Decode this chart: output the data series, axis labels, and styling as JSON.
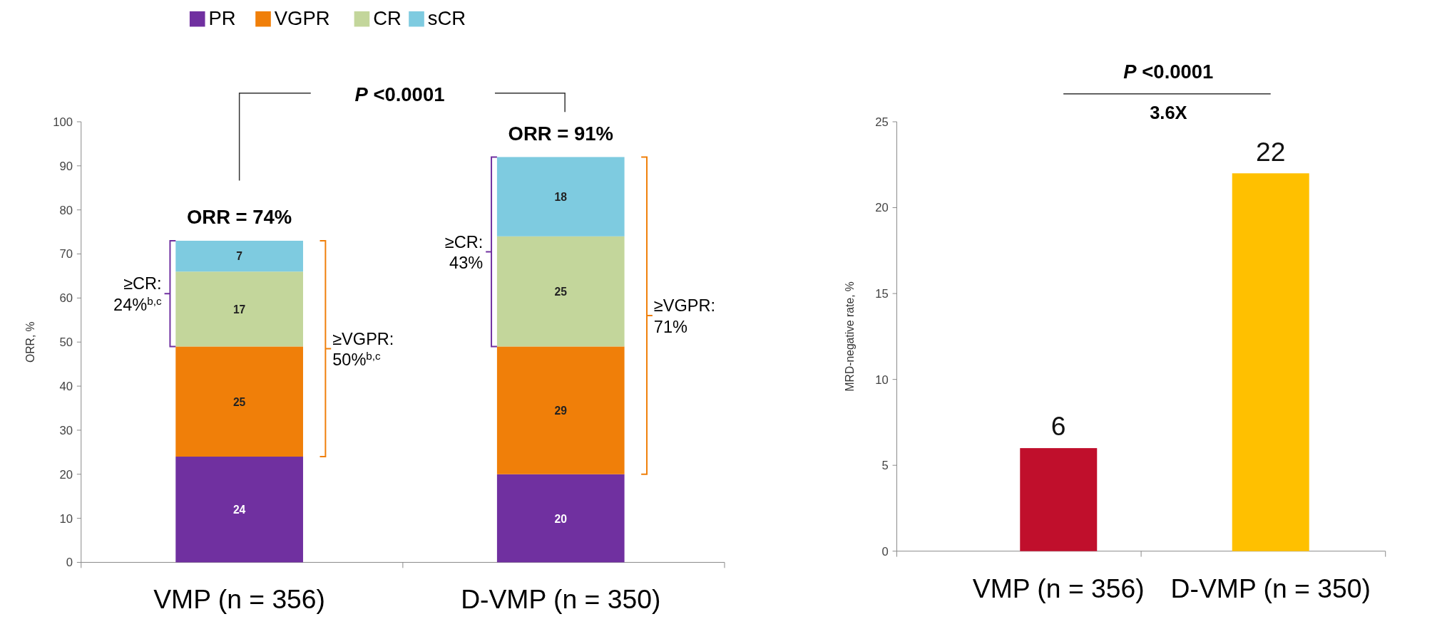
{
  "chart_data": [
    {
      "type": "bar",
      "stacked": true,
      "categories": [
        "VMP (n = 356)",
        "D-VMP (n = 350)"
      ],
      "ylabel": "ORR, %",
      "ylim": [
        0,
        100
      ],
      "yticks": [
        0,
        10,
        20,
        30,
        40,
        50,
        60,
        70,
        80,
        90,
        100
      ],
      "legend": "top",
      "data_labels": true,
      "series": [
        {
          "name": "PR",
          "color": "#7030a0",
          "values": [
            24,
            20
          ]
        },
        {
          "name": "VGPR",
          "color": "#f07f09",
          "values": [
            25,
            29
          ]
        },
        {
          "name": "CR",
          "color": "#c3d69b",
          "values": [
            17,
            25
          ]
        },
        {
          "name": "sCR",
          "color": "#7ecbe0",
          "values": [
            7,
            18
          ]
        }
      ],
      "annotations": [
        {
          "text": "ORR = 74%",
          "x": "VMP (n = 356)",
          "y": 73
        },
        "≥CR:\n24%$^{b,c}$",
        "≥VGPR:\n50%$^{b,c}$",
        {
          "text": "ORR = 91%",
          "x": "D-VMP (n = 350)",
          "y": 92
        },
        "≥CR:\n43%",
        "≥VGPR:\n71%",
        "P <0.0001"
      ]
    },
    {
      "type": "bar",
      "categories": [
        "VMP (n = 356)",
        "D-VMP (n = 350)"
      ],
      "values": [
        6,
        22
      ],
      "colors": [
        "#c00f2c",
        "#ffc000"
      ],
      "ylabel": "MRD-negative rate, %",
      "ylim": [
        0,
        25
      ],
      "yticks": [
        0,
        5,
        10,
        15,
        20,
        25
      ],
      "data_labels": true,
      "annotations": [
        "P <0.0001",
        "3.6X"
      ]
    }
  ]
}
